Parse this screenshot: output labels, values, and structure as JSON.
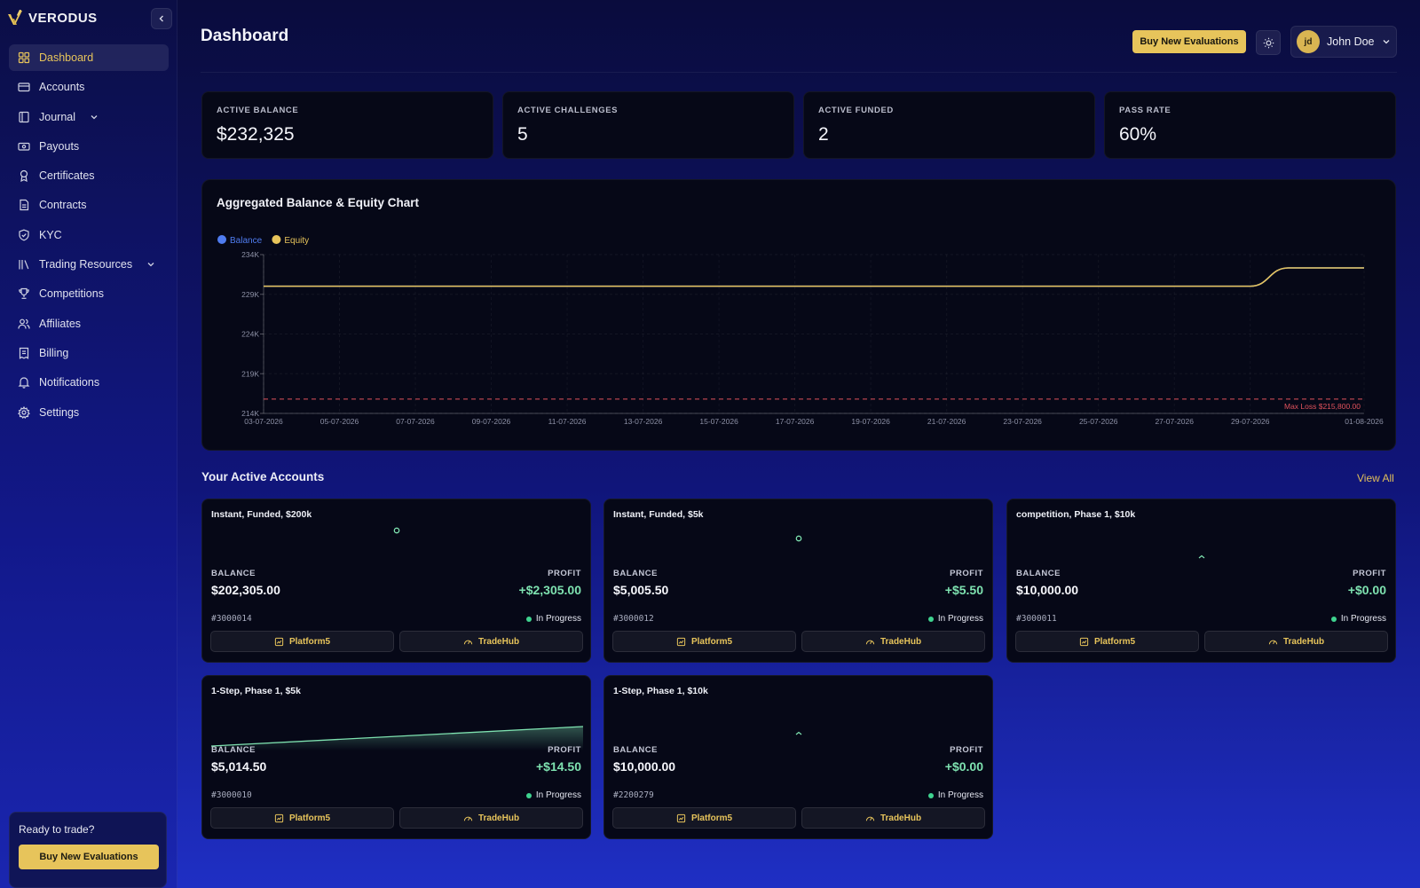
{
  "brand": {
    "name": "VERODUS"
  },
  "sidebar": {
    "items": [
      {
        "label": "Dashboard",
        "icon": "grid-icon",
        "active": true
      },
      {
        "label": "Accounts",
        "icon": "credit-card-icon"
      },
      {
        "label": "Journal",
        "icon": "book-icon",
        "expandable": true
      },
      {
        "label": "Payouts",
        "icon": "banknote-icon"
      },
      {
        "label": "Certificates",
        "icon": "award-icon"
      },
      {
        "label": "Contracts",
        "icon": "file-text-icon"
      },
      {
        "label": "KYC",
        "icon": "shield-check-icon"
      },
      {
        "label": "Trading Resources",
        "icon": "library-icon",
        "expandable": true
      },
      {
        "label": "Competitions",
        "icon": "trophy-icon"
      },
      {
        "label": "Affiliates",
        "icon": "users-icon"
      },
      {
        "label": "Billing",
        "icon": "receipt-icon"
      },
      {
        "label": "Notifications",
        "icon": "bell-icon"
      },
      {
        "label": "Settings",
        "icon": "gear-icon"
      }
    ],
    "cta": {
      "title": "Ready to trade?",
      "button": "Buy New Evaluations"
    }
  },
  "header": {
    "title": "Dashboard",
    "buy_button": "Buy New Evaluations",
    "user": {
      "initials": "jd",
      "name": "John Doe"
    }
  },
  "stats": [
    {
      "label": "ACTIVE BALANCE",
      "value": "$232,325"
    },
    {
      "label": "ACTIVE CHALLENGES",
      "value": "5"
    },
    {
      "label": "ACTIVE FUNDED",
      "value": "2"
    },
    {
      "label": "PASS RATE",
      "value": "60%"
    }
  ],
  "colors": {
    "accent": "#e7c45b",
    "balance": "#4f7cf0",
    "equity": "#e7c45b",
    "max_loss": "#e0525c",
    "profit": "#7ee2b0",
    "status": "#3fd38f"
  },
  "chart_data": {
    "type": "line",
    "title": "Aggregated Balance & Equity Chart",
    "legend": [
      "Balance",
      "Equity"
    ],
    "legend_position": "top-left",
    "x": [
      "03-07-2026",
      "05-07-2026",
      "07-07-2026",
      "09-07-2026",
      "11-07-2026",
      "13-07-2026",
      "15-07-2026",
      "17-07-2026",
      "19-07-2026",
      "21-07-2026",
      "23-07-2026",
      "25-07-2026",
      "27-07-2026",
      "29-07-2026",
      "01-08-2026"
    ],
    "y_ticks": [
      "214K",
      "219K",
      "224K",
      "229K",
      "234K"
    ],
    "ylim": [
      214000,
      234000
    ],
    "grid": true,
    "series": [
      {
        "name": "Balance",
        "x": [
          "03-07-2026",
          "29-07-2026",
          "30-07-2026",
          "01-08-2026"
        ],
        "values": [
          230020,
          230020,
          232325,
          232325
        ]
      },
      {
        "name": "Equity",
        "x": [
          "03-07-2026",
          "29-07-2026",
          "30-07-2026",
          "01-08-2026"
        ],
        "values": [
          230020,
          230020,
          232325,
          232325
        ]
      }
    ],
    "reference_line": {
      "label": "Max Loss $215,800.00",
      "value": 215800
    }
  },
  "accounts_section": {
    "title": "Your Active Accounts",
    "view_all": "View All"
  },
  "accounts": [
    {
      "name": "Instant, Funded, $200k",
      "balance_label": "BALANCE",
      "balance": "$202,305.00",
      "profit_label": "PROFIT",
      "profit": "+$2,305.00",
      "id": "#3000014",
      "status": "In Progress",
      "platform": "Platform5",
      "hub": "TradeHub",
      "spark": "dot"
    },
    {
      "name": "Instant, Funded, $5k",
      "balance_label": "BALANCE",
      "balance": "$5,005.50",
      "profit_label": "PROFIT",
      "profit": "+$5.50",
      "id": "#3000012",
      "status": "In Progress",
      "platform": "Platform5",
      "hub": "TradeHub",
      "spark": "dot"
    },
    {
      "name": "competition, Phase 1, $10k",
      "balance_label": "BALANCE",
      "balance": "$10,000.00",
      "profit_label": "PROFIT",
      "profit": "+$0.00",
      "id": "#3000011",
      "status": "In Progress",
      "platform": "Platform5",
      "hub": "TradeHub",
      "spark": "caret"
    },
    {
      "name": "1-Step, Phase 1, $5k",
      "balance_label": "BALANCE",
      "balance": "$5,014.50",
      "profit_label": "PROFIT",
      "profit": "+$14.50",
      "id": "#3000010",
      "status": "In Progress",
      "platform": "Platform5",
      "hub": "TradeHub",
      "spark": "line"
    },
    {
      "name": "1-Step, Phase 1, $10k",
      "balance_label": "BALANCE",
      "balance": "$10,000.00",
      "profit_label": "PROFIT",
      "profit": "+$0.00",
      "id": "#2200279",
      "status": "In Progress",
      "platform": "Platform5",
      "hub": "TradeHub",
      "spark": "caret"
    }
  ]
}
